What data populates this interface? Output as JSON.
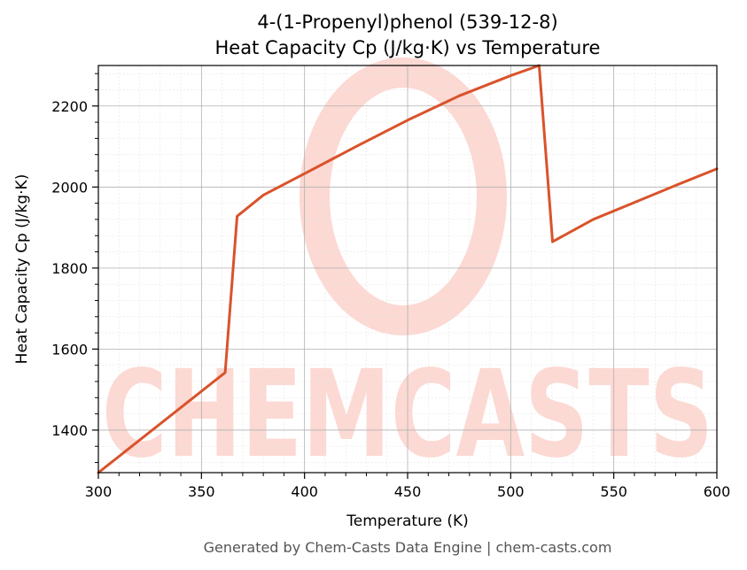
{
  "colors": {
    "line": "#d9532b",
    "grid_major": "#b0b0b0",
    "grid_minor": "#e6e6e6",
    "watermark": "#fcd9d3",
    "footer": "#555555"
  },
  "watermark": {
    "text": "CHEMCASTS"
  },
  "footer": "Generated by Chem-Casts Data Engine | chem-casts.com",
  "chart_data": {
    "type": "line",
    "title": "4-(1-Propenyl)phenol (539-12-8)",
    "subtitle": "Heat Capacity Cp (J/kg·K) vs Temperature",
    "xlabel": "Temperature (K)",
    "ylabel": "Heat Capacity Cp (J/kg·K)",
    "xlim": [
      300,
      600
    ],
    "ylim": [
      1295,
      2300
    ],
    "xticks": [
      300,
      350,
      400,
      450,
      500,
      550,
      600
    ],
    "yticks": [
      1400,
      1600,
      1800,
      2000,
      2200
    ],
    "grid": true,
    "series": [
      {
        "x": [
          300,
          361.5,
          367.3,
          380,
          400,
          425,
          450,
          475,
          500,
          513.8,
          520.3,
          540,
          560,
          580,
          600
        ],
        "y": [
          1295,
          1542,
          1928,
          1980,
          2033,
          2100,
          2165,
          2225,
          2275,
          2300,
          1865,
          1920,
          1962,
          2004,
          2045
        ]
      }
    ]
  }
}
